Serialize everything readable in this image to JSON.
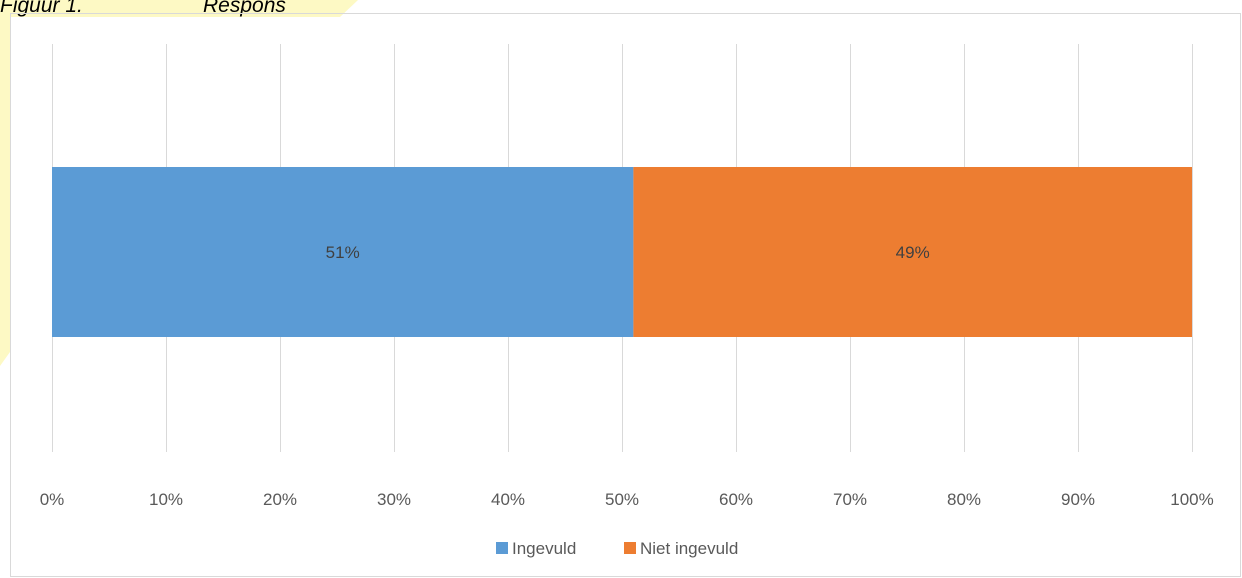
{
  "caption": {
    "number": "Figuur 1.",
    "title": "Respons"
  },
  "colors": {
    "ingevuld": "#5b9bd5",
    "niet_ingevuld": "#ed7d31",
    "grid": "#d9d9d9",
    "highlight": "#fdf9c4"
  },
  "chart_data": {
    "type": "bar",
    "orientation": "horizontal",
    "stacking": "percent-stacked",
    "categories": [
      ""
    ],
    "series": [
      {
        "name": "Ingevuld",
        "values": [
          51
        ],
        "data_label": "51%",
        "color": "#5b9bd5"
      },
      {
        "name": "Niet ingevuld",
        "values": [
          49
        ],
        "data_label": "49%",
        "color": "#ed7d31"
      }
    ],
    "xlim": [
      0,
      100
    ],
    "x_ticks": [
      "0%",
      "10%",
      "20%",
      "30%",
      "40%",
      "50%",
      "60%",
      "70%",
      "80%",
      "90%",
      "100%"
    ],
    "grid": true,
    "legend": "bottom"
  }
}
